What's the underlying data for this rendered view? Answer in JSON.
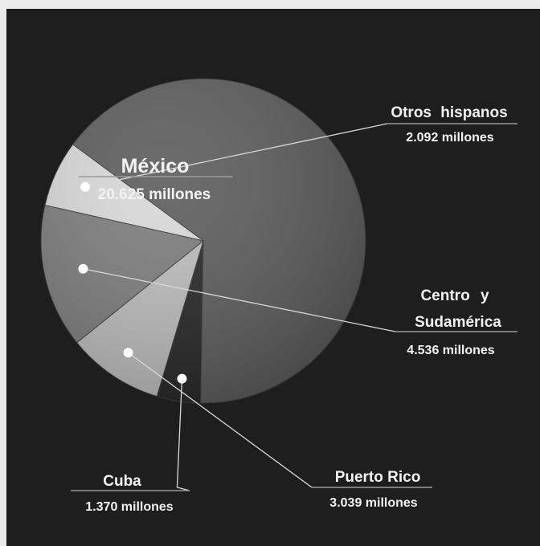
{
  "chart_data": {
    "type": "pie",
    "title": "",
    "slices": [
      {
        "label": "México",
        "value": "20.625 millones",
        "amount": 20.625,
        "color": "#5c5c5c"
      },
      {
        "label": "Otros hispanos",
        "value": "2.092 millones",
        "amount": 2.092,
        "color": "#d9d9d9"
      },
      {
        "label_lines": [
          "Centro y",
          "Sudamérica"
        ],
        "value": "4.536 millones",
        "amount": 4.536,
        "color": "#7c7c7c"
      },
      {
        "label": "Puerto Rico",
        "value": "3.039 millones",
        "amount": 3.039,
        "color": "#bdbdbd"
      },
      {
        "label": "Cuba",
        "value": "1.370 millones",
        "amount": 1.37,
        "color": "#262626"
      }
    ]
  }
}
